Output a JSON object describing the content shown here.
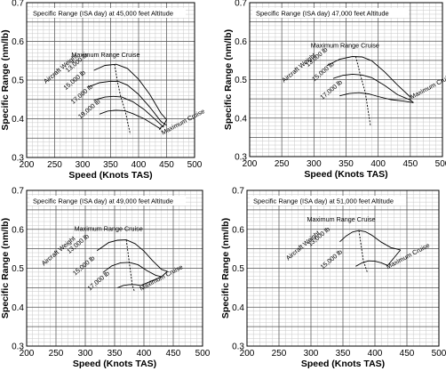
{
  "chart_data": [
    {
      "type": "line",
      "title": "Specific Range (ISA day) at 45,000 feet Altitude",
      "xlabel": "Speed (Knots TAS)",
      "ylabel": "Specific Range (nm/lb)",
      "xlim": [
        200,
        500
      ],
      "ylim": [
        0.3,
        0.7
      ],
      "xticks": [
        200,
        250,
        300,
        350,
        400,
        450,
        500
      ],
      "yticks": [
        0.3,
        0.4,
        0.5,
        0.6,
        0.7
      ],
      "grid": true,
      "curve_header": "Aircraft Weight",
      "series": [
        {
          "name": "13,000 lb",
          "x": [
            320,
            340,
            360,
            380,
            400,
            420,
            440,
            450
          ],
          "y": [
            0.525,
            0.538,
            0.541,
            0.53,
            0.502,
            0.463,
            0.414,
            0.398
          ]
        },
        {
          "name": "15,000 lb",
          "x": [
            310,
            330,
            350,
            365,
            380,
            400,
            420,
            440,
            450
          ],
          "y": [
            0.482,
            0.493,
            0.497,
            0.496,
            0.487,
            0.463,
            0.43,
            0.393,
            0.383
          ]
        },
        {
          "name": "17,000 lb",
          "x": [
            320,
            340,
            355,
            370,
            390,
            410,
            430,
            445
          ],
          "y": [
            0.448,
            0.456,
            0.458,
            0.456,
            0.444,
            0.424,
            0.398,
            0.378
          ]
        },
        {
          "name": "19,000 lb",
          "x": [
            330,
            345,
            360,
            375,
            390,
            410,
            430,
            440
          ],
          "y": [
            0.412,
            0.42,
            0.422,
            0.421,
            0.413,
            0.4,
            0.382,
            0.373
          ]
        }
      ],
      "annotations": [
        {
          "label": "Maximum Range Cruise",
          "x": [
            357,
            362,
            368,
            376,
            385
          ],
          "y": [
            0.541,
            0.497,
            0.458,
            0.421,
            0.36
          ]
        },
        {
          "label": "Maximum Cruise",
          "x": [
            450,
            445,
            440,
            437
          ],
          "y": [
            0.398,
            0.383,
            0.378,
            0.372
          ]
        }
      ]
    },
    {
      "type": "line",
      "title": "Specific Range (ISA day) 47,000 feet Altitude",
      "xlabel": "Speed (Knots TAS)",
      "ylabel": "Specific Range (nm/lb)",
      "xlim": [
        200,
        500
      ],
      "ylim": [
        0.3,
        0.7
      ],
      "xticks": [
        200,
        250,
        300,
        350,
        400,
        450,
        500
      ],
      "yticks": [
        0.3,
        0.4,
        0.5,
        0.6,
        0.7
      ],
      "grid": true,
      "curve_header": "Aircraft Weight",
      "series": [
        {
          "name": "13,000 lb",
          "x": [
            320,
            340,
            360,
            375,
            390,
            410,
            430,
            450
          ],
          "y": [
            0.536,
            0.553,
            0.56,
            0.559,
            0.549,
            0.52,
            0.486,
            0.455
          ]
        },
        {
          "name": "15,000 lb",
          "x": [
            330,
            345,
            360,
            375,
            390,
            410,
            430,
            450
          ],
          "y": [
            0.503,
            0.511,
            0.514,
            0.512,
            0.505,
            0.485,
            0.461,
            0.447
          ]
        },
        {
          "name": "17,000 lb",
          "x": [
            340,
            355,
            370,
            385,
            400,
            420,
            440,
            455
          ],
          "y": [
            0.458,
            0.464,
            0.466,
            0.463,
            0.456,
            0.448,
            0.444,
            0.44
          ]
        }
      ],
      "annotations": [
        {
          "label": "Maximum Range Cruise",
          "x": [
            365,
            372,
            380,
            388
          ],
          "y": [
            0.56,
            0.514,
            0.466,
            0.38
          ]
        },
        {
          "label": "Maximum Cruise",
          "x": [
            450,
            450,
            455
          ],
          "y": [
            0.455,
            0.447,
            0.44
          ]
        }
      ]
    },
    {
      "type": "line",
      "title": "Specific Range (ISA day) at 49,000 feet Altitude",
      "xlabel": "Speed (Knots TAS)",
      "ylabel": "Specific Range (nm/lb)",
      "xlim": [
        200,
        500
      ],
      "ylim": [
        0.3,
        0.7
      ],
      "xticks": [
        200,
        250,
        300,
        350,
        400,
        450,
        500
      ],
      "yticks": [
        0.3,
        0.4,
        0.5,
        0.6,
        0.7
      ],
      "grid": true,
      "curve_header": "Aircraft Weight",
      "series": [
        {
          "name": "13,000 lb",
          "x": [
            320,
            340,
            355,
            370,
            385,
            400,
            415,
            430,
            440
          ],
          "y": [
            0.545,
            0.566,
            0.572,
            0.573,
            0.563,
            0.544,
            0.519,
            0.497,
            0.492
          ]
        },
        {
          "name": "15,000 lb",
          "x": [
            330,
            345,
            360,
            375,
            390,
            405,
            420,
            430
          ],
          "y": [
            0.489,
            0.506,
            0.514,
            0.515,
            0.509,
            0.494,
            0.482,
            0.478
          ]
        },
        {
          "name": "17,000 lb",
          "x": [
            355,
            365,
            375,
            385,
            395
          ],
          "y": [
            0.45,
            0.456,
            0.458,
            0.458,
            0.456
          ]
        }
      ],
      "annotations": [
        {
          "label": "Maximum Range Cruise",
          "x": [
            370,
            375,
            380,
            384
          ],
          "y": [
            0.573,
            0.515,
            0.458,
            0.44
          ]
        },
        {
          "label": "Maximum Cruise",
          "x": [
            440,
            430,
            395
          ],
          "y": [
            0.492,
            0.478,
            0.456
          ]
        }
      ]
    },
    {
      "type": "line",
      "title": "Specific Range (ISA day) at 51,000 feet Altitude",
      "xlabel": "Speed (Knots TAS)",
      "ylabel": "Specific Range (nm/lb)",
      "xlim": [
        200,
        500
      ],
      "ylim": [
        0.3,
        0.7
      ],
      "xticks": [
        200,
        250,
        300,
        350,
        400,
        450,
        500
      ],
      "yticks": [
        0.3,
        0.4,
        0.5,
        0.6,
        0.7
      ],
      "grid": true,
      "curve_header": "Aircraft Weight",
      "series": [
        {
          "name": "13,000 lb",
          "x": [
            345,
            355,
            365,
            375,
            385,
            395,
            410,
            425,
            440
          ],
          "y": [
            0.568,
            0.583,
            0.593,
            0.597,
            0.594,
            0.585,
            0.567,
            0.553,
            0.547
          ]
        },
        {
          "name": "15,000 lb",
          "x": [
            370,
            380,
            390,
            400,
            410,
            420
          ],
          "y": [
            0.505,
            0.514,
            0.519,
            0.518,
            0.514,
            0.507
          ]
        }
      ],
      "annotations": [
        {
          "label": "Maximum Range Cruise",
          "x": [
            375,
            382,
            388
          ],
          "y": [
            0.597,
            0.519,
            0.49
          ]
        },
        {
          "label": "Maximum Cruise",
          "x": [
            440,
            420
          ],
          "y": [
            0.547,
            0.507
          ]
        }
      ]
    }
  ]
}
